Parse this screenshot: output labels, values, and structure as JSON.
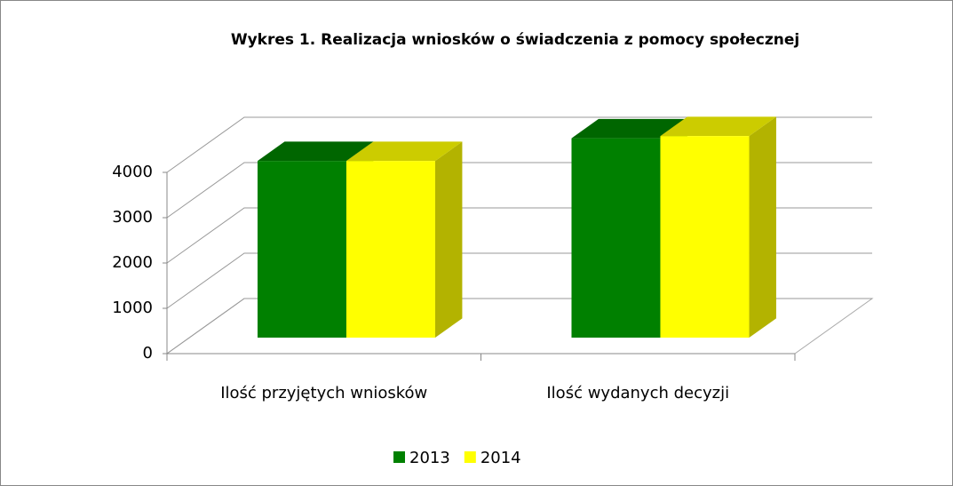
{
  "chart_data": {
    "type": "bar3d",
    "title": "Wykres 1. Realizacja wniosków o świadczenia z pomocy społecznej",
    "categories": [
      "Ilość przyjętych wniosków",
      "Ilość wydanych decyzji"
    ],
    "series": [
      {
        "name": "2013",
        "color": "#008000",
        "values": [
          3900,
          4400
        ]
      },
      {
        "name": "2014",
        "color": "#ffff00",
        "values": [
          3900,
          4450
        ]
      }
    ],
    "ylim": [
      0,
      4000
    ],
    "yticks": [
      0,
      1000,
      2000,
      3000,
      4000
    ],
    "grid": true,
    "legend": "bottom"
  }
}
